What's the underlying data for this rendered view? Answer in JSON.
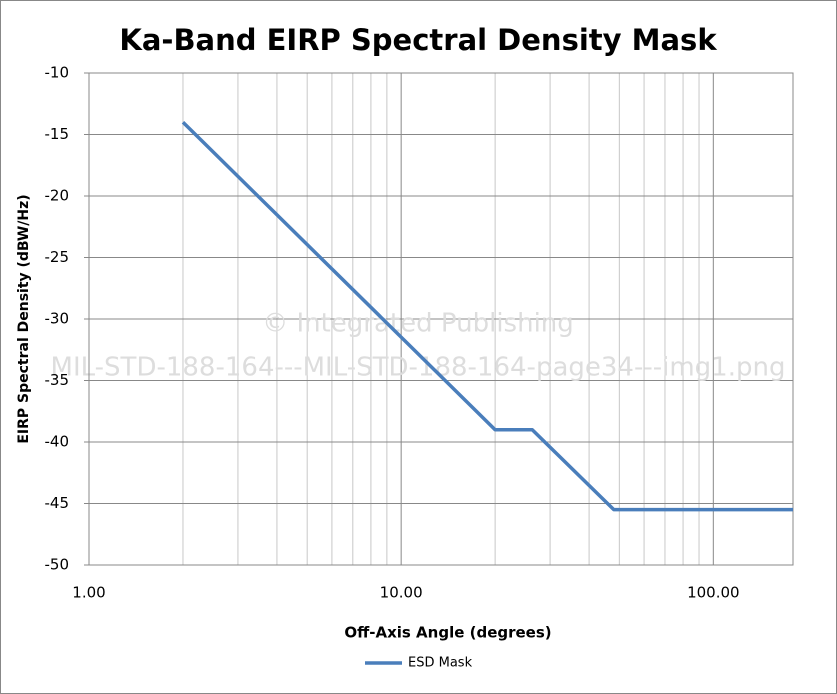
{
  "chart_data": {
    "type": "line",
    "title": "Ka-Band EIRP Spectral Density Mask",
    "x_label": "Off-Axis Angle (degrees)",
    "y_label": "EIRP Spectral Density (dBW/Hz)",
    "x_scale": "log",
    "xlim": [
      1,
      180
    ],
    "xticks": [
      {
        "value": 1,
        "label": "1.00"
      },
      {
        "value": 10,
        "label": "10.00"
      },
      {
        "value": 100,
        "label": "100.00"
      }
    ],
    "xgrid_minor": [
      2,
      3,
      4,
      5,
      6,
      7,
      8,
      9,
      20,
      30,
      40,
      50,
      60,
      70,
      80,
      90
    ],
    "ylim": [
      -50,
      -10
    ],
    "yticks": [
      -50,
      -45,
      -40,
      -35,
      -30,
      -25,
      -20,
      -15,
      -10
    ],
    "grid": true,
    "legend": "bottom",
    "x": [
      2,
      20,
      26.3,
      48,
      180
    ],
    "series": [
      {
        "name": "ESD Mask",
        "color": "#4a7ebb",
        "values": [
          -14,
          -39,
          -39,
          -45.5,
          -45.5
        ]
      }
    ],
    "watermark": [
      "© Integrated Publishing",
      "MIL-STD-188-164---MIL-STD-188-164-page34---img1.png"
    ]
  }
}
